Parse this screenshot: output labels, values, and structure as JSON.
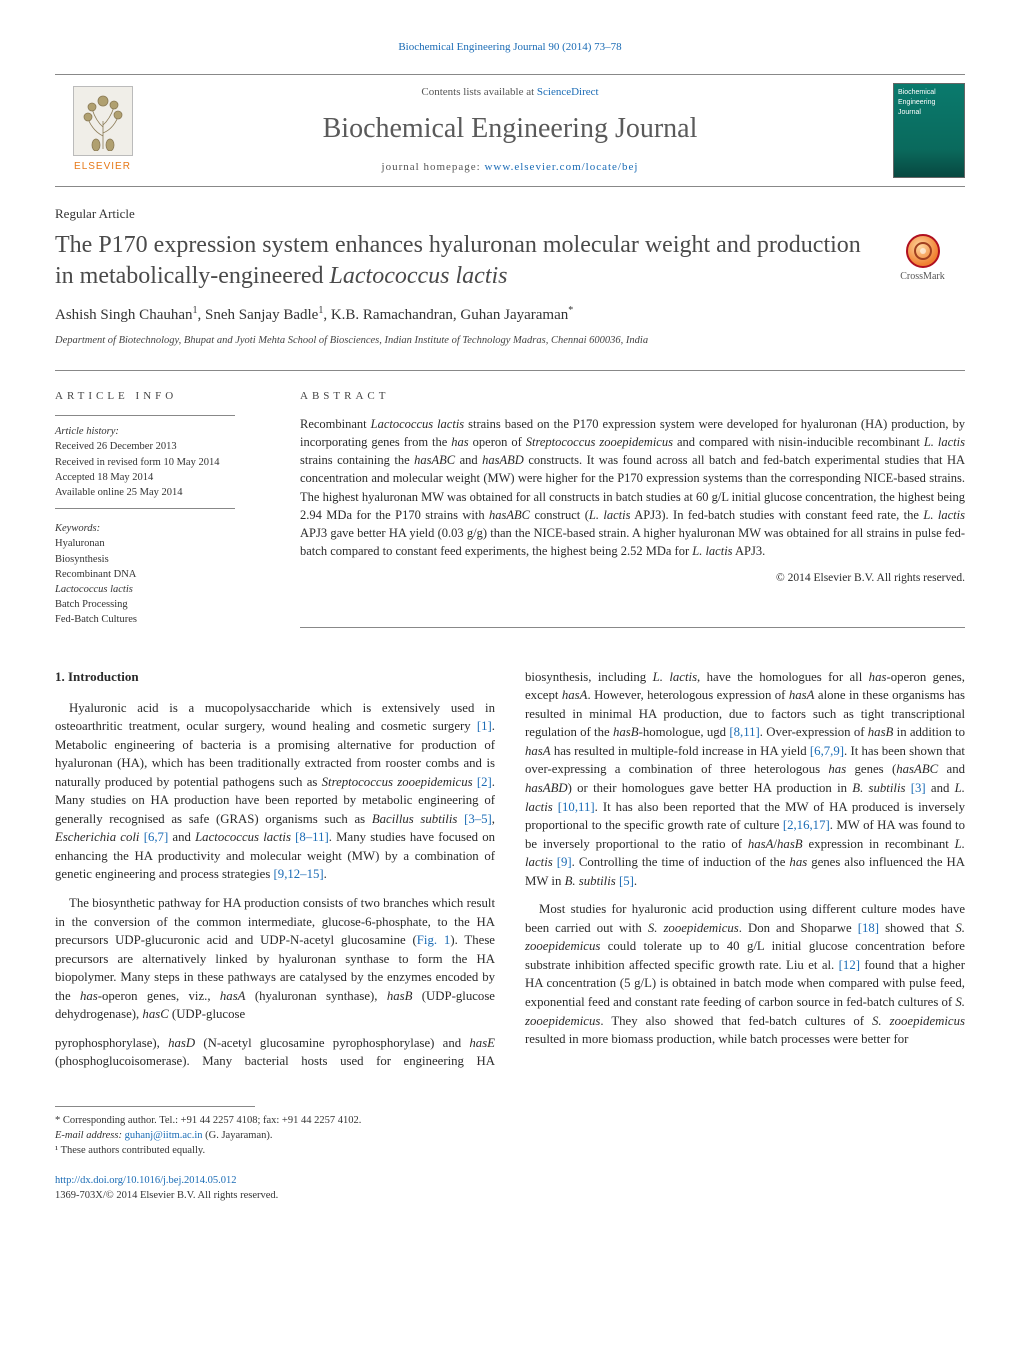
{
  "journal": {
    "citation_line": "Biochemical Engineering Journal 90 (2014) 73–78",
    "lists_prefix": "Contents lists available at ",
    "lists_link": "ScienceDirect",
    "title": "Biochemical Engineering Journal",
    "homepage_prefix": "journal homepage: ",
    "homepage_link": "www.elsevier.com/locate/bej",
    "publisher_label": "ELSEVIER",
    "cover_label_1": "Biochemical",
    "cover_label_2": "Engineering",
    "cover_label_3": "Journal"
  },
  "article": {
    "type": "Regular Article",
    "title_html": "The P170 expression system enhances hyaluronan molecular weight and production in metabolically-engineered <em>Lactococcus lactis</em>",
    "crossmark_label": "CrossMark",
    "authors_html": "Ashish Singh Chauhan<sup>1</sup>, Sneh Sanjay Badle<sup>1</sup>, K.B. Ramachandran, Guhan Jayaraman<sup>*</sup>",
    "affiliation": "Department of Biotechnology, Bhupat and Jyoti Mehta School of Biosciences, Indian Institute of Technology Madras, Chennai 600036, India"
  },
  "info": {
    "heading": "article info",
    "history_label": "Article history:",
    "h1": "Received 26 December 2013",
    "h2": "Received in revised form 10 May 2014",
    "h3": "Accepted 18 May 2014",
    "h4": "Available online 25 May 2014",
    "keywords_label": "Keywords:",
    "k1": "Hyaluronan",
    "k2": "Biosynthesis",
    "k3": "Recombinant DNA",
    "k4": "Lactococcus lactis",
    "k5": "Batch Processing",
    "k6": "Fed-Batch Cultures"
  },
  "abstract": {
    "heading": "abstract",
    "text_html": "Recombinant <em>Lactococcus lactis</em> strains based on the P170 expression system were developed for hyaluronan (HA) production, by incorporating genes from the <em>has</em> operon of <em>Streptococcus zooepidemicus</em> and compared with nisin-inducible recombinant <em>L. lactis</em> strains containing the <em>hasABC</em> and <em>hasABD</em> constructs. It was found across all batch and fed-batch experimental studies that HA concentration and molecular weight (MW) were higher for the P170 expression systems than the corresponding NICE-based strains. The highest hyaluronan MW was obtained for all constructs in batch studies at 60 g/L initial glucose concentration, the highest being 2.94 MDa for the P170 strains with <em>hasABC</em> construct (<em>L. lactis</em> APJ3). In fed-batch studies with constant feed rate, the <em>L. lactis</em> APJ3 gave better HA yield (0.03 g/g) than the NICE-based strain. A higher hyaluronan MW was obtained for all strains in pulse fed-batch compared to constant feed experiments, the highest being 2.52 MDa for <em>L. lactis</em> APJ3.",
    "copyright": "© 2014 Elsevier B.V. All rights reserved."
  },
  "body": {
    "section_heading": "1.  Introduction",
    "p1_html": "Hyaluronic acid is a mucopolysaccharide which is extensively used in osteoarthritic treatment, ocular surgery, wound healing and cosmetic surgery <span class=\"ref\">[1]</span>. Metabolic engineering of bacteria is a promising alternative for production of hyaluronan (HA), which has been traditionally extracted from rooster combs and is naturally produced by potential pathogens such as <em class=\"species\">Streptococcus zooepidemicus</em> <span class=\"ref\">[2]</span>. Many studies on HA production have been reported by metabolic engineering of generally recognised as safe (GRAS) organisms such as <em class=\"species\">Bacillus subtilis</em> <span class=\"ref\">[3–5]</span>, <em class=\"species\">Escherichia coli</em> <span class=\"ref\">[6,7]</span> and <em class=\"species\">Lactococcus lactis</em> <span class=\"ref\">[8–11]</span>. Many studies have focused on enhancing the HA productivity and molecular weight (MW) by a combination of genetic engineering and process strategies <span class=\"ref\">[9,12–15]</span>.",
    "p2_html": "The biosynthetic pathway for HA production consists of two branches which result in the conversion of the common intermediate, glucose-6-phosphate, to the HA precursors UDP-glucuronic acid and UDP-N-acetyl glucosamine (<span class=\"fig-ref\">Fig. 1</span>). These precursors are alternatively linked by hyaluronan synthase to form the HA biopolymer. Many steps in these pathways are catalysed by the enzymes encoded by the <em>has</em>-operon genes, viz., <em>hasA</em> (hyaluronan synthase), <em>hasB</em> (UDP-glucose dehydrogenase), <em>hasC</em> (UDP-glucose",
    "p3_html": "pyrophosphorylase), <em>hasD</em> (N-acetyl glucosamine pyrophosphorylase) and <em>hasE</em> (phosphoglucoisomerase). Many bacterial hosts used for engineering HA biosynthesis, including <em class=\"species\">L. lactis</em>, have the homologues for all <em>has</em>-operon genes, except <em>hasA</em>. However, heterologous expression of <em>hasA</em> alone in these organisms has resulted in minimal HA production, due to factors such as tight transcriptional regulation of the <em>hasB</em>-homologue, ugd <span class=\"ref\">[8,11]</span>. Over-expression of <em>hasB</em> in addition to <em>hasA</em> has resulted in multiple-fold increase in HA yield <span class=\"ref\">[6,7,9]</span>. It has been shown that over-expressing a combination of three heterologous <em>has</em> genes (<em>hasABC</em> and <em>hasABD</em>) or their homologues gave better HA production in <em class=\"species\">B. subtilis</em> <span class=\"ref\">[3]</span> and <em class=\"species\">L. lactis</em> <span class=\"ref\">[10,11]</span>. It has also been reported that the MW of HA produced is inversely proportional to the specific growth rate of culture <span class=\"ref\">[2,16,17]</span>. MW of HA was found to be inversely proportional to the ratio of <em>hasA</em>/<em>hasB</em> expression in recombinant <em class=\"species\">L. lactis</em> <span class=\"ref\">[9]</span>. Controlling the time of induction of the <em>has</em> genes also influenced the HA MW in <em class=\"species\">B. subtilis</em> <span class=\"ref\">[5]</span>.",
    "p4_html": "Most studies for hyaluronic acid production using different culture modes have been carried out with <em class=\"species\">S. zooepidemicus</em>. Don and Shoparwe <span class=\"ref\">[18]</span> showed that <em class=\"species\">S. zooepidemicus</em> could tolerate up to 40 g/L initial glucose concentration before substrate inhibition affected specific growth rate. Liu et al. <span class=\"ref\">[12]</span> found that a higher HA concentration (5 g/L) is obtained in batch mode when compared with pulse feed, exponential feed and constant rate feeding of carbon source in fed-batch cultures of <em class=\"species\">S. zooepidemicus</em>. They also showed that fed-batch cultures of <em class=\"species\">S. zooepidemicus</em> resulted in more biomass production, while batch processes were better for"
  },
  "footer": {
    "corr_line": "* Corresponding author. Tel.: +91 44 2257 4108; fax: +91 44 2257 4102.",
    "email_label": "E-mail address: ",
    "email": "guhanj@iitm.ac.in",
    "email_suffix": " (G. Jayaraman).",
    "equal_line": "¹ These authors contributed equally.",
    "doi": "http://dx.doi.org/10.1016/j.bej.2014.05.012",
    "issn_line": "1369-703X/© 2014 Elsevier B.V. All rights reserved."
  },
  "colors": {
    "link": "#1a6bb5",
    "text": "#2a2a2a",
    "rule": "#888888",
    "elsevier_orange": "#e67817",
    "cover_bg": "#0a7a6d"
  }
}
